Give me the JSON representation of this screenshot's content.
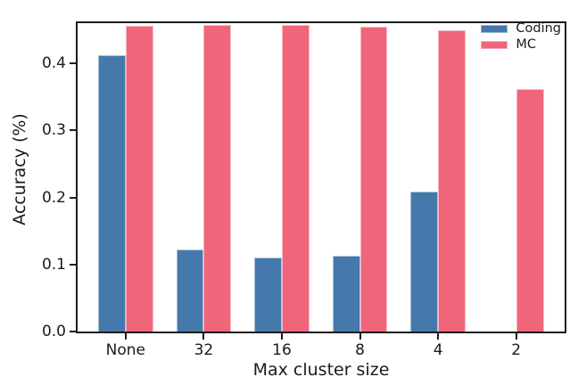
{
  "figure": {
    "background_color": "#ffffff",
    "spine_color": "#1c1c1c",
    "text_color": "#1a1a1a"
  },
  "chart_data": {
    "type": "bar",
    "title": "",
    "xlabel": "Max cluster size",
    "ylabel": "Accuracy (%)",
    "categories": [
      "None",
      "32",
      "16",
      "8",
      "4",
      "2"
    ],
    "series": [
      {
        "name": "Coding",
        "color": "#4578ab",
        "values": [
          0.412,
          0.122,
          0.111,
          0.113,
          0.209,
          0
        ]
      },
      {
        "name": "MC",
        "color": "#f0657a",
        "values": [
          0.456,
          0.457,
          0.458,
          0.455,
          0.45,
          0.362
        ]
      }
    ],
    "ylim": [
      0,
      0.46
    ],
    "yticks": [
      0.0,
      0.1,
      0.2,
      0.3,
      0.4
    ],
    "ytick_labels": [
      "0.0",
      "0.1",
      "0.2",
      "0.3",
      "0.4"
    ],
    "grid": false,
    "legend_position": "upper right",
    "bar_width_units": 0.353,
    "x_left_pad_units": 0.615,
    "x_span_units": 6.235
  }
}
